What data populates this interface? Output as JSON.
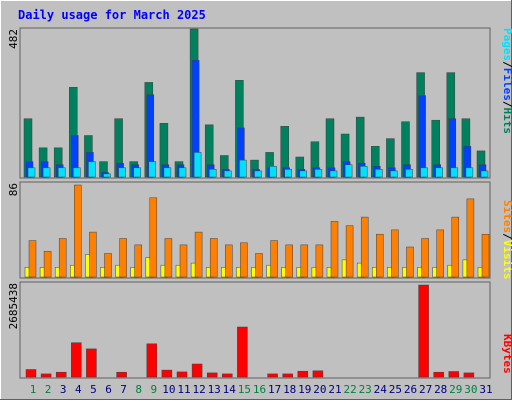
{
  "title": "Daily usage for March 2025",
  "colors": {
    "frame": "#c0c0c0",
    "plot": "#c0c0c0",
    "title": "#0000ff",
    "hits": "#00805c",
    "files": "#0040ff",
    "pages": "#00e0ff",
    "visits": "#ffff00",
    "sites": "#ff8000",
    "kbytes": "#ff0000",
    "weekday_label": "#000080",
    "weekend_label": "#008040"
  },
  "legend": {
    "top": [
      "Pages",
      "/",
      "Files",
      "/",
      "Hits"
    ],
    "middle": [
      "Sites",
      "/",
      "Visits"
    ],
    "bottom": [
      "KBytes"
    ]
  },
  "ymax_labels": {
    "top": "482",
    "middle": "86",
    "bottom": "2685438"
  },
  "chart_data": [
    {
      "type": "bar",
      "name": "hits-files-pages",
      "categories": [
        "1",
        "2",
        "3",
        "4",
        "5",
        "6",
        "7",
        "8",
        "9",
        "10",
        "11",
        "12",
        "13",
        "14",
        "15",
        "16",
        "17",
        "18",
        "19",
        "20",
        "21",
        "22",
        "23",
        "24",
        "25",
        "26",
        "27",
        "28",
        "29",
        "30",
        "31"
      ],
      "weekend_days": [
        1,
        2,
        8,
        9,
        15,
        16,
        22,
        23,
        29,
        30
      ],
      "ylim": [
        0,
        482
      ],
      "series": [
        {
          "name": "Hits",
          "values": [
            190,
            95,
            95,
            292,
            135,
            50,
            190,
            50,
            308,
            175,
            50,
            482,
            170,
            70,
            315,
            55,
            80,
            165,
            65,
            115,
            190,
            140,
            195,
            100,
            125,
            180,
            340,
            185,
            340,
            190,
            85
          ]
        },
        {
          "name": "Files",
          "values": [
            50,
            50,
            40,
            135,
            80,
            15,
            45,
            40,
            268,
            40,
            40,
            380,
            40,
            25,
            160,
            25,
            30,
            30,
            25,
            30,
            30,
            50,
            45,
            35,
            30,
            40,
            265,
            40,
            190,
            100,
            40
          ]
        },
        {
          "name": "Pages",
          "values": [
            30,
            30,
            30,
            30,
            50,
            10,
            30,
            30,
            50,
            30,
            30,
            80,
            25,
            20,
            55,
            20,
            35,
            25,
            20,
            25,
            20,
            40,
            35,
            25,
            20,
            25,
            30,
            30,
            30,
            30,
            20
          ]
        }
      ]
    },
    {
      "type": "bar",
      "name": "visits-sites",
      "categories": [
        "1",
        "2",
        "3",
        "4",
        "5",
        "6",
        "7",
        "8",
        "9",
        "10",
        "11",
        "12",
        "13",
        "14",
        "15",
        "16",
        "17",
        "18",
        "19",
        "20",
        "21",
        "22",
        "23",
        "24",
        "25",
        "26",
        "27",
        "28",
        "29",
        "30",
        "31"
      ],
      "ylim": [
        0,
        86
      ],
      "series": [
        {
          "name": "Visits",
          "values": [
            9,
            9,
            9,
            11,
            21,
            9,
            11,
            9,
            18,
            11,
            11,
            13,
            9,
            9,
            9,
            9,
            11,
            9,
            9,
            9,
            9,
            16,
            13,
            9,
            9,
            9,
            9,
            9,
            11,
            16,
            9
          ]
        },
        {
          "name": "Sites",
          "values": [
            34,
            24,
            36,
            86,
            42,
            22,
            36,
            30,
            74,
            36,
            30,
            42,
            36,
            30,
            32,
            22,
            34,
            30,
            30,
            30,
            52,
            48,
            56,
            40,
            44,
            28,
            36,
            44,
            56,
            73,
            40
          ]
        }
      ]
    },
    {
      "type": "bar",
      "name": "kbytes",
      "categories": [
        "1",
        "2",
        "3",
        "4",
        "5",
        "6",
        "7",
        "8",
        "9",
        "10",
        "11",
        "12",
        "13",
        "14",
        "15",
        "16",
        "17",
        "18",
        "19",
        "20",
        "21",
        "22",
        "23",
        "24",
        "25",
        "26",
        "27",
        "28",
        "29",
        "30",
        "31"
      ],
      "ylim": [
        0,
        2685438
      ],
      "series": [
        {
          "name": "KBytes",
          "values": [
            220000,
            90000,
            140000,
            1000000,
            820000,
            0,
            140000,
            0,
            970000,
            200000,
            150000,
            380000,
            120000,
            90000,
            1460000,
            0,
            90000,
            90000,
            170000,
            180000,
            0,
            0,
            0,
            0,
            0,
            0,
            2685438,
            140000,
            160000,
            120000,
            0
          ]
        }
      ]
    }
  ]
}
